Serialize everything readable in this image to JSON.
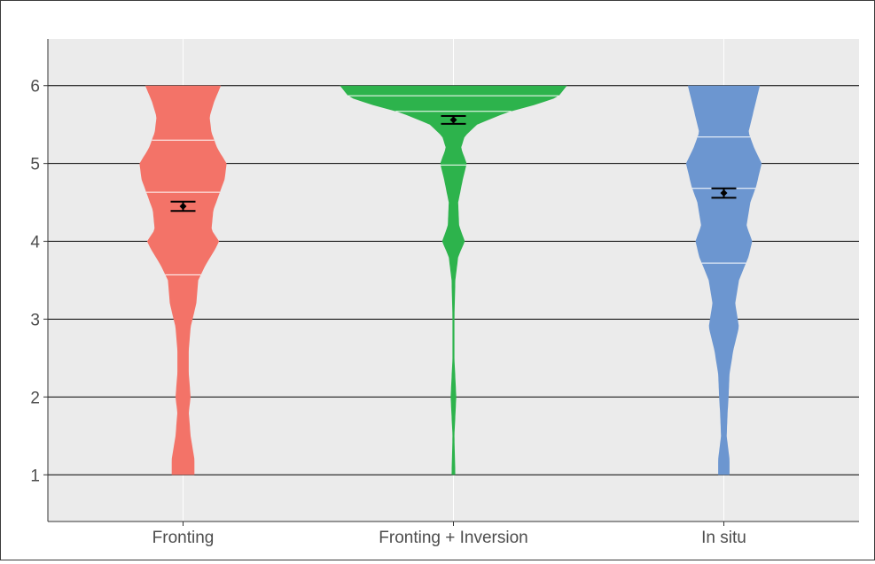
{
  "chart_data": {
    "type": "violin",
    "categories": [
      "Fronting",
      "Fronting + Inversion",
      "In situ"
    ],
    "title": "",
    "xlabel": "",
    "ylabel": "",
    "ylim": [
      0.4,
      6.6
    ],
    "y_ticks": [
      1,
      2,
      3,
      4,
      5,
      6
    ],
    "y_tick_labels": [
      "1",
      "2",
      "3",
      "4",
      "5",
      "6"
    ],
    "grid": true,
    "legend": "none",
    "colors": {
      "panel_background": "#ebebeb",
      "major_gridline": "#000000",
      "minor_gridline": "#ffffff",
      "quantile_line": "#ffffff",
      "mean_marker": "#000000"
    },
    "series": [
      {
        "category": "Fronting",
        "color": "#f37368",
        "density": [
          [
            1.0,
            0.12
          ],
          [
            1.2,
            0.12
          ],
          [
            1.5,
            0.08
          ],
          [
            1.8,
            0.06
          ],
          [
            2.0,
            0.08
          ],
          [
            2.3,
            0.06
          ],
          [
            2.6,
            0.06
          ],
          [
            2.9,
            0.08
          ],
          [
            3.2,
            0.14
          ],
          [
            3.5,
            0.16
          ],
          [
            3.7,
            0.24
          ],
          [
            3.9,
            0.34
          ],
          [
            4.0,
            0.38
          ],
          [
            4.15,
            0.3
          ],
          [
            4.4,
            0.32
          ],
          [
            4.6,
            0.38
          ],
          [
            4.8,
            0.44
          ],
          [
            5.0,
            0.46
          ],
          [
            5.2,
            0.36
          ],
          [
            5.4,
            0.3
          ],
          [
            5.6,
            0.28
          ],
          [
            5.8,
            0.33
          ],
          [
            6.0,
            0.4
          ]
        ],
        "quantiles": [
          3.57,
          4.63,
          5.3
        ],
        "mean": 4.45,
        "ci": [
          4.39,
          4.51
        ]
      },
      {
        "category": "Fronting + Inversion",
        "color": "#2db34c",
        "density": [
          [
            1.0,
            0.02
          ],
          [
            1.5,
            0.01
          ],
          [
            2.0,
            0.03
          ],
          [
            2.5,
            0.01
          ],
          [
            3.0,
            0.01
          ],
          [
            3.5,
            0.02
          ],
          [
            3.8,
            0.05
          ],
          [
            4.0,
            0.12
          ],
          [
            4.2,
            0.06
          ],
          [
            4.5,
            0.05
          ],
          [
            4.8,
            0.1
          ],
          [
            5.0,
            0.14
          ],
          [
            5.2,
            0.08
          ],
          [
            5.35,
            0.12
          ],
          [
            5.5,
            0.25
          ],
          [
            5.65,
            0.55
          ],
          [
            5.75,
            0.85
          ],
          [
            5.85,
            1.1
          ],
          [
            6.0,
            1.2
          ]
        ],
        "quantiles": [
          4.98,
          5.67,
          5.87
        ],
        "mean": 5.56,
        "ci": [
          5.51,
          5.61
        ]
      },
      {
        "category": "In situ",
        "color": "#6c96d0",
        "density": [
          [
            1.0,
            0.06
          ],
          [
            1.2,
            0.06
          ],
          [
            1.5,
            0.03
          ],
          [
            1.8,
            0.04
          ],
          [
            2.0,
            0.05
          ],
          [
            2.3,
            0.06
          ],
          [
            2.6,
            0.1
          ],
          [
            2.9,
            0.16
          ],
          [
            3.2,
            0.12
          ],
          [
            3.5,
            0.16
          ],
          [
            3.8,
            0.26
          ],
          [
            4.0,
            0.3
          ],
          [
            4.2,
            0.24
          ],
          [
            4.5,
            0.28
          ],
          [
            4.7,
            0.34
          ],
          [
            5.0,
            0.4
          ],
          [
            5.2,
            0.32
          ],
          [
            5.4,
            0.26
          ],
          [
            5.6,
            0.3
          ],
          [
            5.8,
            0.34
          ],
          [
            6.0,
            0.38
          ]
        ],
        "quantiles": [
          3.72,
          4.68,
          5.34
        ],
        "mean": 4.62,
        "ci": [
          4.56,
          4.68
        ]
      }
    ]
  }
}
